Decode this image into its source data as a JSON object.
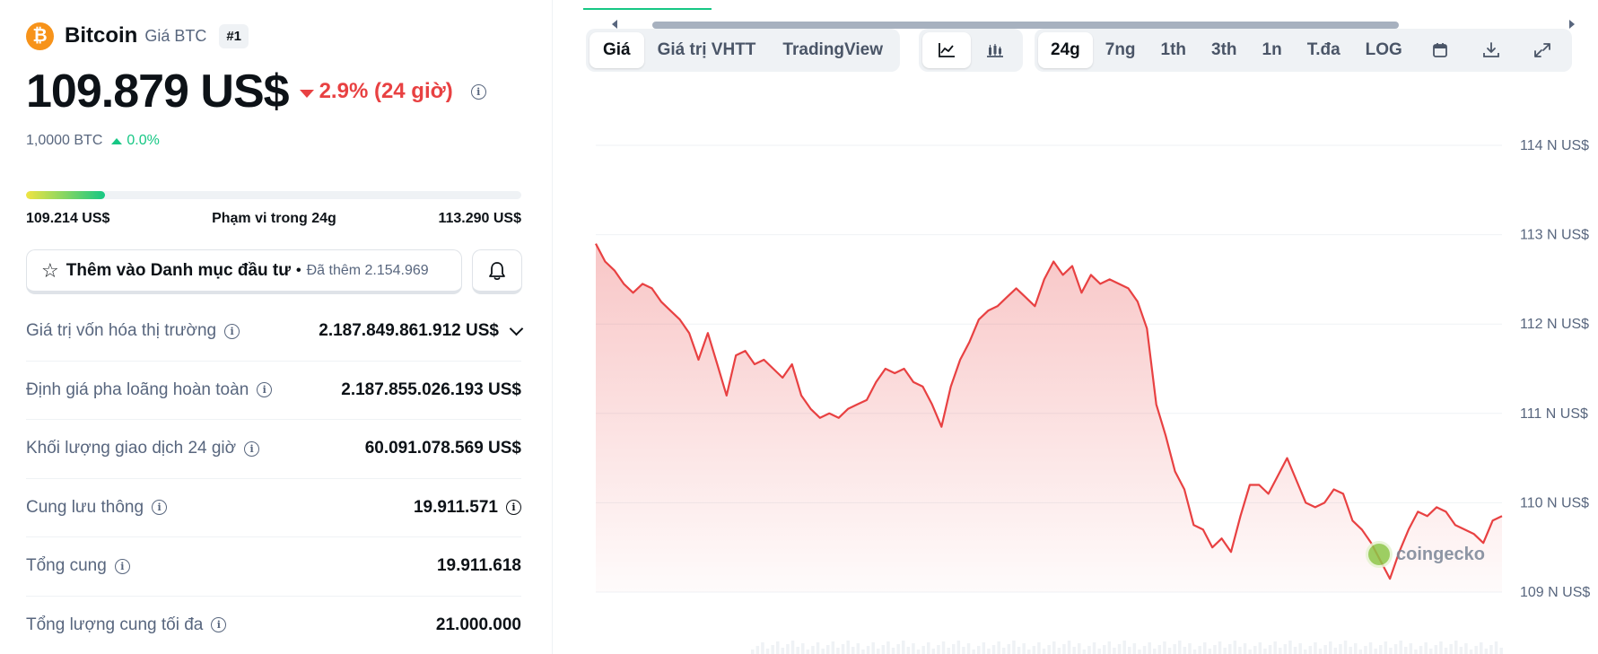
{
  "coin": {
    "logo_glyph": "₿",
    "name": "Bitcoin",
    "subtitle": "Giá BTC",
    "rank": "#1",
    "price": "109.879 US$",
    "change": "2.9% (24 giờ)",
    "btc_value": "1,0000 BTC",
    "btc_change": "0.0%",
    "colors": {
      "up": "#16c784",
      "down": "#e84142",
      "brand": "#f7931a"
    }
  },
  "range": {
    "low": "109.214 US$",
    "label": "Phạm vi trong 24g",
    "high": "113.290 US$",
    "fill_fraction": 0.16
  },
  "watchlist": {
    "label": "Thêm vào Danh mục đầu tư",
    "separator": "•",
    "added": "Đã thêm 2.154.969",
    "icon": "star-icon",
    "bell_icon": "bell-icon"
  },
  "stats": [
    {
      "label": "Giá trị vốn hóa thị trường",
      "value": "2.187.849.861.912 US$",
      "has_info": true,
      "has_chevron": true
    },
    {
      "label": "Định giá pha loãng hoàn toàn",
      "value": "2.187.855.026.193 US$",
      "has_info": true
    },
    {
      "label": "Khối lượng giao dịch 24 giờ",
      "value": "60.091.078.569 US$",
      "has_info": true
    },
    {
      "label": "Cung lưu thông",
      "value": "19.911.571",
      "has_info": true,
      "value_info": true
    },
    {
      "label": "Tổng cung",
      "value": "19.911.618",
      "has_info": true
    },
    {
      "label": "Tổng lượng cung tối đa",
      "value": "21.000.000",
      "has_info": true
    }
  ],
  "toolbar": {
    "view_tabs": [
      "Giá",
      "Giá trị VHTT",
      "TradingView"
    ],
    "active_view": 0,
    "chart_type_icons": [
      "line-chart-icon",
      "candlestick-icon"
    ],
    "active_chart_type": 0,
    "ranges": [
      "24g",
      "7ng",
      "1th",
      "3th",
      "1n",
      "T.đa",
      "LOG"
    ],
    "active_range": 0,
    "extra_icons": [
      "calendar-icon",
      "download-icon",
      "fullscreen-icon"
    ]
  },
  "watermark": "coingecko",
  "chart_data": {
    "type": "area",
    "title": "",
    "xlabel": "",
    "ylabel": "",
    "y_unit": "N US$",
    "ylim": [
      109,
      114
    ],
    "yticks": [
      {
        "value": 114,
        "label": "114 N US$"
      },
      {
        "value": 113,
        "label": "113 N US$"
      },
      {
        "value": 112,
        "label": "112 N US$"
      },
      {
        "value": 111,
        "label": "111 N US$"
      },
      {
        "value": 110,
        "label": "110 N US$"
      },
      {
        "value": 109,
        "label": "109 N US$"
      }
    ],
    "grid": true,
    "line_color": "#e84142",
    "fill_color": "#e84142",
    "series": [
      {
        "values": [
          112.9,
          112.7,
          112.6,
          112.45,
          112.35,
          112.45,
          112.4,
          112.25,
          112.15,
          112.05,
          111.9,
          111.6,
          111.9,
          111.55,
          111.2,
          111.65,
          111.7,
          111.55,
          111.6,
          111.5,
          111.4,
          111.55,
          111.2,
          111.05,
          110.95,
          111.0,
          110.95,
          111.05,
          111.1,
          111.15,
          111.35,
          111.5,
          111.45,
          111.5,
          111.35,
          111.3,
          111.1,
          110.85,
          111.3,
          111.6,
          111.8,
          112.05,
          112.15,
          112.2,
          112.3,
          112.4,
          112.3,
          112.2,
          112.5,
          112.7,
          112.55,
          112.65,
          112.35,
          112.55,
          112.45,
          112.5,
          112.45,
          112.4,
          112.25,
          111.95,
          111.1,
          110.75,
          110.35,
          110.15,
          109.75,
          109.7,
          109.5,
          109.6,
          109.45,
          109.85,
          110.2,
          110.2,
          110.1,
          110.3,
          110.5,
          110.25,
          110.0,
          109.95,
          110.0,
          110.15,
          110.1,
          109.8,
          109.7,
          109.55,
          109.35,
          109.15,
          109.45,
          109.7,
          109.9,
          109.85,
          109.95,
          109.9,
          109.75,
          109.7,
          109.65,
          109.55,
          109.8,
          109.85
        ]
      }
    ],
    "volume_bars": true
  }
}
